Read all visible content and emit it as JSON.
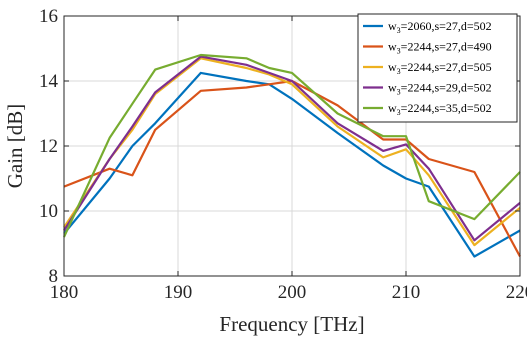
{
  "chart_data": {
    "type": "line",
    "xlabel": "Frequency [THz]",
    "ylabel": "Gain [dB]",
    "xlim": [
      180,
      220
    ],
    "ylim": [
      8,
      16
    ],
    "xticks": [
      180,
      190,
      200,
      210,
      220
    ],
    "yticks": [
      8,
      10,
      12,
      14,
      16
    ],
    "grid": true,
    "legend_position": "top-right",
    "series": [
      {
        "name": "w3=2060,s=27,d=502",
        "legend": {
          "prefix": "w",
          "sub": "3",
          "suffix": "=2060,s=27,d=502"
        },
        "color": "#0072BD",
        "x": [
          180,
          184,
          186,
          188,
          192,
          196,
          198,
          200,
          204,
          208,
          210,
          212,
          216,
          220
        ],
        "y": [
          9.3,
          11.0,
          12.0,
          12.7,
          14.25,
          14.0,
          13.9,
          13.45,
          12.4,
          11.4,
          11.0,
          10.75,
          8.6,
          9.4
        ]
      },
      {
        "name": "w3=2244,s=27,d=490",
        "legend": {
          "prefix": "w",
          "sub": "3",
          "suffix": "=2244,s=27,d=490"
        },
        "color": "#D95319",
        "x": [
          180,
          184,
          186,
          188,
          192,
          196,
          198,
          200,
          204,
          208,
          210,
          212,
          216,
          220
        ],
        "y": [
          10.75,
          11.3,
          11.1,
          12.5,
          13.7,
          13.8,
          13.9,
          14.0,
          13.25,
          12.2,
          12.2,
          11.6,
          11.2,
          8.6
        ]
      },
      {
        "name": "w3=2244,s=27,d=505",
        "legend": {
          "prefix": "w",
          "sub": "3",
          "suffix": "=2244,s=27,d=505"
        },
        "color": "#EDB120",
        "x": [
          180,
          184,
          186,
          188,
          192,
          196,
          198,
          200,
          204,
          208,
          210,
          212,
          216,
          220
        ],
        "y": [
          9.5,
          11.6,
          12.5,
          13.6,
          14.7,
          14.4,
          14.2,
          13.9,
          12.6,
          11.65,
          11.9,
          11.1,
          8.95,
          10.1
        ]
      },
      {
        "name": "w3=2244,s=29,d=502",
        "legend": {
          "prefix": "w",
          "sub": "3",
          "suffix": "=2244,s=29,d=502"
        },
        "color": "#7E2F8E",
        "x": [
          180,
          184,
          186,
          188,
          192,
          196,
          198,
          200,
          204,
          208,
          210,
          212,
          216,
          220
        ],
        "y": [
          9.4,
          11.6,
          12.6,
          13.65,
          14.75,
          14.5,
          14.25,
          14.0,
          12.7,
          11.85,
          12.05,
          11.3,
          9.1,
          10.25
        ]
      },
      {
        "name": "w3=2244,s=35,d=502",
        "legend": {
          "prefix": "w",
          "sub": "3",
          "suffix": "=2244,s=35,d=502"
        },
        "color": "#77AC30",
        "x": [
          180,
          184,
          186,
          188,
          192,
          196,
          198,
          200,
          204,
          208,
          210,
          212,
          216,
          220
        ],
        "y": [
          9.2,
          12.25,
          13.3,
          14.35,
          14.8,
          14.7,
          14.4,
          14.25,
          13.0,
          12.3,
          12.3,
          10.3,
          9.75,
          11.2
        ]
      }
    ]
  }
}
